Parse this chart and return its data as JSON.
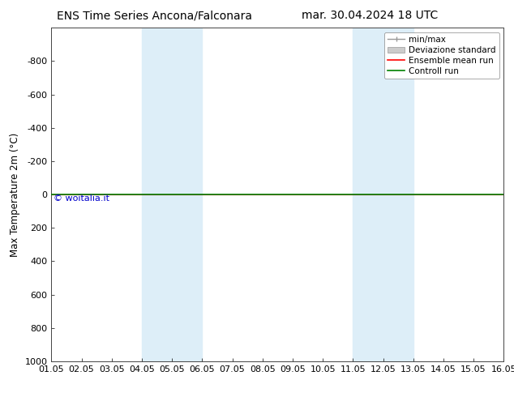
{
  "title_left": "ENS Time Series Ancona/Falconara",
  "title_right": "mar. 30.04.2024 18 UTC",
  "ylabel": "Max Temperature 2m (°C)",
  "xlim_min": 0,
  "xlim_max": 15,
  "ylim_bottom": 1000,
  "ylim_top": -1000,
  "yticks": [
    -800,
    -600,
    -400,
    -200,
    0,
    200,
    400,
    600,
    800,
    1000
  ],
  "xtick_labels": [
    "01.05",
    "02.05",
    "03.05",
    "04.05",
    "05.05",
    "06.05",
    "07.05",
    "08.05",
    "09.05",
    "10.05",
    "11.05",
    "12.05",
    "13.05",
    "14.05",
    "15.05",
    "16.05"
  ],
  "shaded_bands": [
    [
      3,
      4
    ],
    [
      4,
      5
    ],
    [
      10,
      11
    ],
    [
      11,
      12
    ]
  ],
  "shade_color": "#ddeef8",
  "control_run_color": "#008000",
  "ensemble_mean_color": "#ff0000",
  "watermark": "© woitalia.it",
  "watermark_color": "#0000cc",
  "bg_color": "#ffffff",
  "legend_labels": [
    "min/max",
    "Deviazione standard",
    "Ensemble mean run",
    "Controll run"
  ],
  "title_fontsize": 10,
  "tick_fontsize": 8,
  "ylabel_fontsize": 8.5,
  "legend_fontsize": 7.5
}
